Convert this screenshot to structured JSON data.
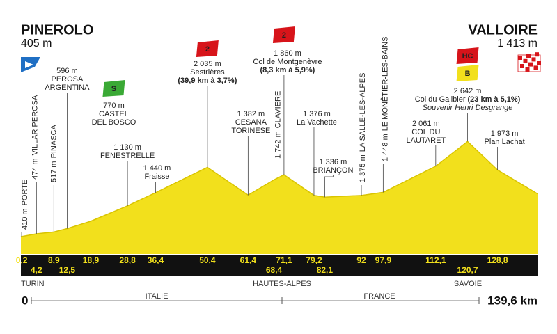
{
  "chart_data": {
    "type": "area",
    "x": [
      0,
      0.2,
      4.2,
      8.9,
      12.5,
      18.9,
      28.8,
      36.4,
      50.4,
      61.4,
      68.4,
      71.1,
      79.2,
      82.1,
      92,
      97.9,
      112.1,
      120.7,
      128.8,
      139.6
    ],
    "x_labels": [
      "0",
      "0,2",
      "4,2",
      "8,9",
      "12,5",
      "18,9",
      "28,8",
      "36,4",
      "50,4",
      "61,4",
      "68,4",
      "71,1",
      "79,2",
      "82,1",
      "92",
      "97,9",
      "112,1",
      "120,7",
      "128,8",
      "139,6 km"
    ],
    "values": [
      405,
      410,
      474,
      517,
      596,
      770,
      1130,
      1440,
      2035,
      1382,
      1742,
      1860,
      1376,
      1336,
      1375,
      1448,
      2061,
      2642,
      1973,
      1413
    ],
    "value_labels": [
      "405 m",
      "410 m",
      "474 m",
      "517 m",
      "596 m",
      "770 m",
      "1 130 m",
      "1 440 m",
      "2 035 m",
      "1 382 m",
      "1 742 m",
      "1 860 m",
      "1 376 m",
      "1 336 m",
      "1 375 m",
      "1 448 m",
      "2 061 m",
      "2 642 m",
      "1 973 m",
      "1 413 m"
    ],
    "names": [
      [
        "PINEROLO"
      ],
      [
        "PORTE"
      ],
      [
        "VILLAR PEROSA"
      ],
      [
        "PINASCA"
      ],
      [
        "PEROSA",
        "ARGENTINA"
      ],
      [
        "CASTEL",
        "DEL BOSCO"
      ],
      [
        "FENESTRELLE"
      ],
      [
        "Fraisse"
      ],
      [
        "Sestrières"
      ],
      [
        "CESANA",
        "TORINESE"
      ],
      [
        "CLAVIERE"
      ],
      [
        "Col de Montgenèvre"
      ],
      [
        "La Vachette"
      ],
      [
        "BRIANÇON"
      ],
      [
        "LA SALLE-LES-ALPES"
      ],
      [
        "LE MONÊTIER-LES-BAINS"
      ],
      [
        "COL DU",
        "LAUTARET"
      ],
      [
        "Col du Galibier"
      ],
      [
        "Plan Lachat"
      ],
      [
        "VALLOIRE"
      ]
    ],
    "climb_details": [
      null,
      null,
      null,
      null,
      null,
      null,
      null,
      null,
      "(39,9 km à 3,7%)",
      null,
      null,
      "(8,3 km à 5,9%)",
      null,
      null,
      null,
      null,
      null,
      "(23 km à 5,1%)",
      null,
      null
    ],
    "dedications": [
      null,
      null,
      null,
      null,
      null,
      null,
      null,
      null,
      null,
      null,
      null,
      null,
      null,
      null,
      null,
      null,
      null,
      "Souvenir Henri Desgrange",
      null,
      null
    ],
    "badges": [
      null,
      null,
      null,
      null,
      null,
      [
        "S"
      ],
      null,
      null,
      [
        "2"
      ],
      null,
      null,
      [
        "2"
      ],
      null,
      null,
      null,
      null,
      null,
      [
        "HC",
        "B"
      ],
      null,
      null
    ],
    "regions": [
      "TURIN",
      "HAUTES-ALPES",
      "SAVOIE"
    ],
    "countries": [
      "ITALIE",
      "FRANCE"
    ],
    "color": "#f2e01c"
  }
}
